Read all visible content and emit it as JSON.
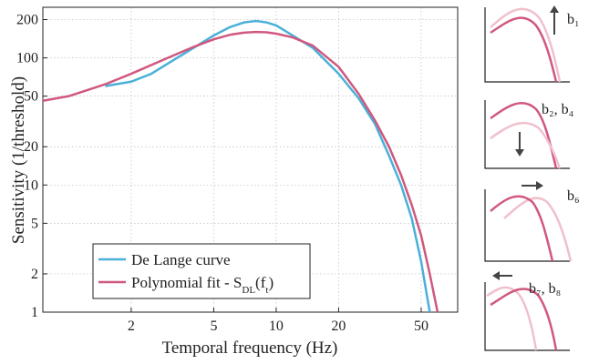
{
  "chart_data": {
    "type": "line",
    "xlabel": "Temporal frequency (Hz)",
    "ylabel": "Sensitivity (1/threshold)",
    "log_x": true,
    "log_y": true,
    "grid": true,
    "xlim": [
      0.75,
      75
    ],
    "ylim": [
      1,
      250
    ],
    "xticks": [
      2,
      5,
      10,
      20,
      50
    ],
    "yticks": [
      1,
      2,
      5,
      10,
      20,
      50,
      100,
      200
    ],
    "legend": "lower left",
    "series": [
      {
        "name": "De Lange curve",
        "color": "#4ab0d9",
        "x": [
          1.5,
          2,
          2.5,
          3,
          4,
          5,
          6,
          7,
          8,
          9,
          10,
          12,
          15,
          20,
          25,
          30,
          35,
          40,
          45,
          50,
          55
        ],
        "values": [
          60,
          65,
          75,
          90,
          120,
          150,
          175,
          190,
          195,
          190,
          180,
          150,
          120,
          75,
          48,
          30,
          17,
          10,
          5.5,
          2.5,
          1
        ]
      },
      {
        "name": "Polynomial fit - S_DL(f_t)",
        "color": "#d0587e",
        "x": [
          0.75,
          1,
          1.5,
          2,
          3,
          4,
          5,
          6,
          7,
          8,
          9,
          10,
          12,
          15,
          20,
          25,
          30,
          35,
          40,
          45,
          50,
          55,
          60
        ],
        "values": [
          46,
          50,
          62,
          75,
          100,
          122,
          140,
          152,
          158,
          160,
          159,
          155,
          145,
          125,
          85,
          52,
          32,
          20,
          12,
          7,
          4,
          2,
          1
        ]
      }
    ]
  },
  "panels": [
    {
      "label": "b₁"
    },
    {
      "label": "b₂, b₄"
    },
    {
      "label": "b₆"
    },
    {
      "label": "b₇, b₈"
    }
  ]
}
